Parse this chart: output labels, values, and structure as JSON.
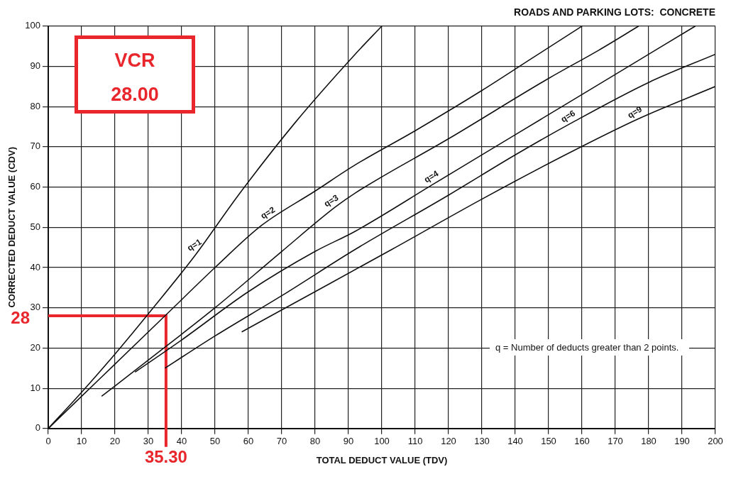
{
  "chart_data": {
    "type": "line",
    "title": "ROADS AND PARKING LOTS:  CONCRETE",
    "xlabel": "TOTAL DEDUCT VALUE (TDV)",
    "ylabel": "CORRECTED DEDUCT VALUE (CDV)",
    "xlim": [
      0,
      200
    ],
    "xticks": [
      0,
      10,
      20,
      30,
      40,
      50,
      60,
      70,
      80,
      90,
      100,
      110,
      120,
      130,
      140,
      150,
      160,
      170,
      180,
      190,
      200
    ],
    "ylim": [
      0,
      100
    ],
    "yticks": [
      0,
      10,
      20,
      30,
      40,
      50,
      60,
      70,
      80,
      90,
      100
    ],
    "grid": true,
    "legend": false,
    "marker": "none",
    "line_style": "solid",
    "series": [
      {
        "color": "#111111",
        "x": [
          0,
          10,
          20,
          30,
          44,
          57,
          74,
          92,
          100
        ],
        "values": [
          0,
          9,
          18.5,
          28.5,
          43,
          58,
          76,
          93,
          100
        ]
      },
      {
        "color": "#111111",
        "x": [
          0,
          10,
          20,
          35,
          50,
          64,
          80,
          92,
          110,
          130,
          145,
          160
        ],
        "values": [
          0,
          8,
          16,
          28,
          40,
          50.5,
          59,
          65.5,
          74,
          84,
          92,
          100
        ]
      },
      {
        "color": "#111111",
        "x": [
          16,
          30,
          50,
          70,
          86,
          92,
          120,
          150,
          165,
          177
        ],
        "values": [
          8,
          17,
          30,
          44,
          55,
          58.5,
          72,
          87,
          94,
          100
        ]
      },
      {
        "color": "#111111",
        "x": [
          26,
          40,
          60,
          80,
          92,
          116,
          140,
          170,
          194
        ],
        "values": [
          14,
          22,
          34,
          44,
          49,
          61,
          73,
          88,
          100
        ]
      },
      {
        "color": "#111111",
        "x": [
          35,
          50,
          70,
          92,
          120,
          140,
          157,
          180,
          200
        ],
        "values": [
          15,
          23,
          33,
          44.5,
          58,
          68,
          76,
          86,
          93
        ]
      },
      {
        "color": "#111111",
        "x": [
          58,
          80,
          103,
          130,
          155,
          177,
          200
        ],
        "values": [
          24,
          34,
          44.5,
          57,
          68,
          77,
          85
        ]
      }
    ],
    "ref_lines": [
      {
        "axis": "y",
        "value": 28,
        "label": "28",
        "color": "#e8262b"
      },
      {
        "axis": "x",
        "value": 35.3,
        "label": "35.30",
        "color": "#e8262b"
      }
    ],
    "annotations": [
      "VCR\n28.00",
      "q = Number of deducts greater than 2 points.",
      {
        "text": "q=1",
        "x": 45,
        "y": 44
      },
      {
        "text": "q=2",
        "x": 67,
        "y": 52
      },
      {
        "text": "q=3",
        "x": 86,
        "y": 55
      },
      {
        "text": "q=4",
        "x": 116,
        "y": 61
      },
      {
        "text": "q=6",
        "x": 157,
        "y": 76
      },
      {
        "text": "q=9",
        "x": 177,
        "y": 77
      }
    ]
  }
}
